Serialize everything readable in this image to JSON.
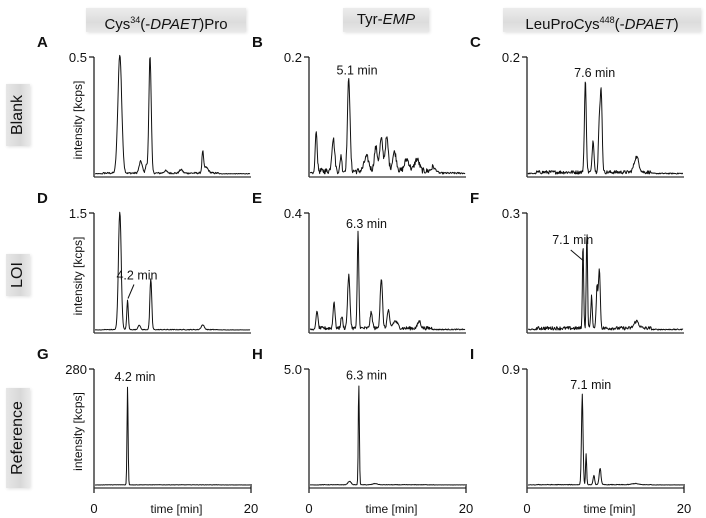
{
  "columns": [
    {
      "pre": "Cys",
      "sup": "34",
      "mid": "(-",
      "ital": "DPAET",
      "post": ")Pro"
    },
    {
      "pre": "Tyr-",
      "sup": "",
      "mid": "",
      "ital": "EMP",
      "post": ""
    },
    {
      "pre": "LeuProCys",
      "sup": "448",
      "mid": "(-",
      "ital": "DPAET",
      "post": ")"
    }
  ],
  "rows": [
    "Blank",
    "LOI",
    "Reference"
  ],
  "y_axis_label": "intensity  [kcps]",
  "x_axis_label": "time  [min]",
  "x_ticks": [
    "0",
    "20"
  ],
  "chart_data": [
    {
      "panel": "A",
      "type": "line",
      "column": "Cys34(-DPAET)Pro",
      "row": "Blank",
      "ylabel": "intensity [kcps]",
      "xlabel": "time [min]",
      "xlim": [
        0,
        20
      ],
      "ylim": [
        0,
        0.5
      ],
      "ymax_label": "0.5",
      "annotation": null,
      "peaks": [
        {
          "t": 3.2,
          "h": 1.0,
          "w": 0.25
        },
        {
          "t": 5.9,
          "h": 0.1,
          "w": 0.2
        },
        {
          "t": 6.6,
          "h": 0.07,
          "w": 0.1
        },
        {
          "t": 7.1,
          "h": 1.0,
          "w": 0.15
        },
        {
          "t": 9.1,
          "h": 0.02,
          "w": 0.2
        },
        {
          "t": 11.1,
          "h": 0.03,
          "w": 0.2
        },
        {
          "t": 13.9,
          "h": 0.17,
          "w": 0.1
        },
        {
          "t": 14.3,
          "h": 0.05,
          "w": 0.3
        }
      ],
      "noise": 0.015
    },
    {
      "panel": "B",
      "type": "line",
      "column": "Tyr-EMP",
      "row": "Blank",
      "ylabel": "intensity [kcps]",
      "xlabel": "time [min]",
      "xlim": [
        0,
        20
      ],
      "ylim": [
        0,
        0.2
      ],
      "ymax_label": "0.2",
      "annotation": {
        "text": "5.1 min",
        "t": 5.1,
        "leader": false
      },
      "peaks": [
        {
          "t": 0.8,
          "h": 0.36,
          "w": 0.12
        },
        {
          "t": 3.0,
          "h": 0.28,
          "w": 0.18
        },
        {
          "t": 4.0,
          "h": 0.14,
          "w": 0.1
        },
        {
          "t": 5.0,
          "h": 0.8,
          "w": 0.16
        },
        {
          "t": 7.3,
          "h": 0.12,
          "w": 0.3
        },
        {
          "t": 8.5,
          "h": 0.2,
          "w": 0.2
        },
        {
          "t": 9.2,
          "h": 0.27,
          "w": 0.2
        },
        {
          "t": 9.9,
          "h": 0.28,
          "w": 0.2
        },
        {
          "t": 10.9,
          "h": 0.16,
          "w": 0.25
        },
        {
          "t": 12.5,
          "h": 0.1,
          "w": 0.3
        },
        {
          "t": 13.8,
          "h": 0.1,
          "w": 0.3
        },
        {
          "t": 16.0,
          "h": 0.04,
          "w": 0.3
        }
      ],
      "noise": 0.05
    },
    {
      "panel": "C",
      "type": "line",
      "column": "LeuProCys448(-DPAET)",
      "row": "Blank",
      "ylabel": "intensity [kcps]",
      "xlabel": "time [min]",
      "xlim": [
        0,
        20
      ],
      "ylim": [
        0,
        0.2
      ],
      "ymax_label": "0.2",
      "annotation": {
        "text": "7.6 min",
        "t": 7.6,
        "leader": false
      },
      "peaks": [
        {
          "t": 7.4,
          "h": 0.78,
          "w": 0.12
        },
        {
          "t": 8.4,
          "h": 0.27,
          "w": 0.12
        },
        {
          "t": 9.2,
          "h": 0.4,
          "w": 0.12
        },
        {
          "t": 9.45,
          "h": 0.67,
          "w": 0.12
        },
        {
          "t": 14.0,
          "h": 0.13,
          "w": 0.3
        }
      ],
      "noise": 0.03
    },
    {
      "panel": "D",
      "type": "line",
      "column": "Cys34(-DPAET)Pro",
      "row": "LOI",
      "ylabel": "intensity [kcps]",
      "xlabel": "time [min]",
      "xlim": [
        0,
        20
      ],
      "ylim": [
        0,
        1.5
      ],
      "ymax_label": "1.5",
      "annotation": {
        "text": "4.2 min",
        "t": 4.2,
        "leader": true
      },
      "peaks": [
        {
          "t": 3.2,
          "h": 1.0,
          "w": 0.18
        },
        {
          "t": 4.2,
          "h": 0.25,
          "w": 0.1
        },
        {
          "t": 5.7,
          "h": 0.04,
          "w": 0.15
        },
        {
          "t": 7.2,
          "h": 0.43,
          "w": 0.12
        },
        {
          "t": 13.9,
          "h": 0.04,
          "w": 0.2
        }
      ],
      "noise": 0.006
    },
    {
      "panel": "E",
      "type": "line",
      "column": "Tyr-EMP",
      "row": "LOI",
      "ylabel": "intensity [kcps]",
      "xlabel": "time [min]",
      "xlim": [
        0,
        20
      ],
      "ylim": [
        0,
        0.4
      ],
      "ymax_label": "0.4",
      "annotation": {
        "text": "6.3 min",
        "t": 6.3,
        "leader": false
      },
      "peaks": [
        {
          "t": 0.9,
          "h": 0.16,
          "w": 0.12
        },
        {
          "t": 3.1,
          "h": 0.23,
          "w": 0.12
        },
        {
          "t": 4.1,
          "h": 0.1,
          "w": 0.12
        },
        {
          "t": 5.0,
          "h": 0.45,
          "w": 0.15
        },
        {
          "t": 6.2,
          "h": 0.82,
          "w": 0.1
        },
        {
          "t": 7.9,
          "h": 0.13,
          "w": 0.15
        },
        {
          "t": 9.2,
          "h": 0.42,
          "w": 0.15
        },
        {
          "t": 10.1,
          "h": 0.15,
          "w": 0.15
        },
        {
          "t": 11.0,
          "h": 0.06,
          "w": 0.3
        },
        {
          "t": 14.1,
          "h": 0.06,
          "w": 0.2
        }
      ],
      "noise": 0.03
    },
    {
      "panel": "F",
      "type": "line",
      "column": "LeuProCys448(-DPAET)",
      "row": "LOI",
      "ylabel": "intensity [kcps]",
      "xlabel": "time [min]",
      "xlim": [
        0,
        20
      ],
      "ylim": [
        0,
        0.3
      ],
      "ymax_label": "0.3",
      "annotation": {
        "text": "7.1 min",
        "t": 7.1,
        "leader": true
      },
      "peaks": [
        {
          "t": 7.1,
          "h": 0.72,
          "w": 0.08
        },
        {
          "t": 7.6,
          "h": 0.82,
          "w": 0.08
        },
        {
          "t": 8.2,
          "h": 0.27,
          "w": 0.1
        },
        {
          "t": 8.9,
          "h": 0.34,
          "w": 0.1
        },
        {
          "t": 9.2,
          "h": 0.5,
          "w": 0.12
        },
        {
          "t": 14.0,
          "h": 0.06,
          "w": 0.3
        }
      ],
      "noise": 0.03
    },
    {
      "panel": "G",
      "type": "line",
      "column": "Cys34(-DPAET)Pro",
      "row": "Reference",
      "ylabel": "intensity [kcps]",
      "xlabel": "time [min]",
      "xlim": [
        0,
        20
      ],
      "ylim": [
        0,
        280
      ],
      "ymax_label": "280",
      "annotation": {
        "text": "4.2 min",
        "t": 4.2,
        "leader": false
      },
      "peaks": [
        {
          "t": 4.2,
          "h": 0.84,
          "w": 0.07
        }
      ],
      "noise": 0.003
    },
    {
      "panel": "H",
      "type": "line",
      "column": "Tyr-EMP",
      "row": "Reference",
      "ylabel": "intensity [kcps]",
      "xlabel": "time [min]",
      "xlim": [
        0,
        20
      ],
      "ylim": [
        0,
        5.0
      ],
      "ymax_label": "5.0",
      "annotation": {
        "text": "6.3 min",
        "t": 6.3,
        "leader": false
      },
      "peaks": [
        {
          "t": 5.1,
          "h": 0.03,
          "w": 0.2
        },
        {
          "t": 6.3,
          "h": 0.85,
          "w": 0.07
        },
        {
          "t": 8.4,
          "h": 0.01,
          "w": 0.3
        }
      ],
      "noise": 0.004
    },
    {
      "panel": "I",
      "type": "line",
      "column": "LeuProCys448(-DPAET)",
      "row": "Reference",
      "ylabel": "intensity [kcps]",
      "xlabel": "time [min]",
      "xlim": [
        0,
        20
      ],
      "ylim": [
        0,
        0.9
      ],
      "ymax_label": "0.9",
      "annotation": {
        "text": "7.1 min",
        "t": 7.1,
        "leader": false
      },
      "peaks": [
        {
          "t": 7.0,
          "h": 0.77,
          "w": 0.1
        },
        {
          "t": 7.5,
          "h": 0.26,
          "w": 0.07
        },
        {
          "t": 8.5,
          "h": 0.08,
          "w": 0.1
        },
        {
          "t": 9.3,
          "h": 0.14,
          "w": 0.12
        },
        {
          "t": 13.8,
          "h": 0.01,
          "w": 0.4
        }
      ],
      "noise": 0.005
    }
  ]
}
